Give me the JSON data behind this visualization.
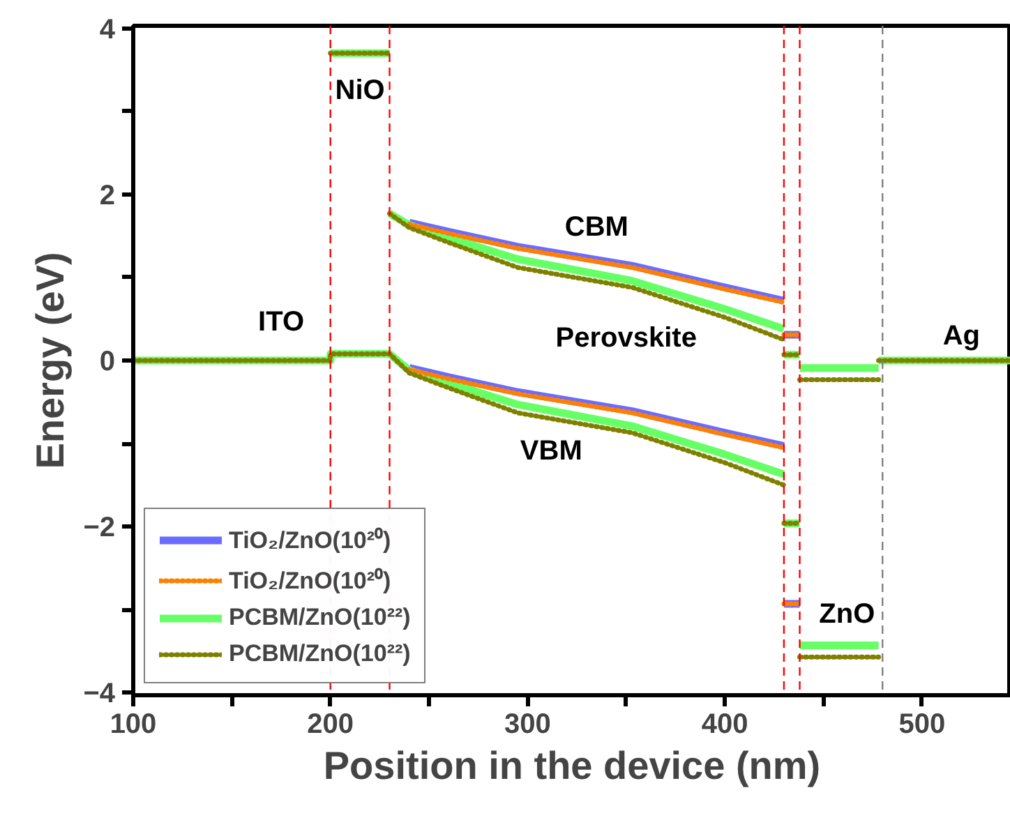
{
  "chart_data": {
    "type": "line",
    "xlabel": "Position in the device (nm)",
    "ylabel": "Energy (eV)",
    "series": [
      {
        "name": "TiO₂/ZnO(10²⁰)",
        "color": "#6b6bff",
        "line_style": "solid",
        "x": [
          240,
          260,
          295,
          353,
          400,
          430
        ],
        "values": [
          -0.09,
          -0.2,
          -0.38,
          -0.61,
          -0.87,
          -1.03
        ]
      },
      {
        "color": "#6b6bff",
        "line_style": "solid",
        "x": [
          240,
          260,
          295,
          353,
          400,
          430
        ],
        "values": [
          1.66,
          1.55,
          1.37,
          1.14,
          0.88,
          0.72
        ]
      },
      {
        "color": "#6b6bff",
        "line_style": "solid",
        "x": [
          430,
          438
        ],
        "values": [
          0.31,
          0.31
        ]
      },
      {
        "color": "#6b6bff",
        "line_style": "solid",
        "x": [
          430,
          438
        ],
        "values": [
          -2.93,
          -2.93
        ]
      },
      {
        "name": "TiO₂/ZnO(10²⁰)",
        "color": "#ff8000",
        "line_style": "dotted",
        "x": [
          240,
          260,
          295,
          353,
          400,
          430
        ],
        "values": [
          -0.11,
          -0.22,
          -0.4,
          -0.63,
          -0.89,
          -1.05
        ]
      },
      {
        "color": "#ff8000",
        "line_style": "dotted",
        "x": [
          240,
          260,
          295,
          353,
          400,
          430
        ],
        "values": [
          1.64,
          1.53,
          1.35,
          1.12,
          0.86,
          0.7
        ]
      },
      {
        "color": "#ff8000",
        "line_style": "dotted",
        "x": [
          430,
          438
        ],
        "values": [
          0.31,
          0.31
        ]
      },
      {
        "color": "#ff8000",
        "line_style": "dotted",
        "x": [
          430,
          438
        ],
        "values": [
          -2.93,
          -2.93
        ]
      },
      {
        "name": "PCBM/ZnO(10²²)",
        "color": "#66ff66",
        "line_style": "solid",
        "x": [
          100,
          200,
          200,
          230,
          240,
          260,
          295,
          353,
          400,
          430
        ],
        "values": [
          0,
          0,
          0.08,
          0.08,
          -0.12,
          -0.27,
          -0.53,
          -0.79,
          -1.13,
          -1.37
        ]
      },
      {
        "color": "#66ff66",
        "line_style": "solid",
        "x": [
          200,
          230
        ],
        "values": [
          3.7,
          3.7
        ]
      },
      {
        "color": "#66ff66",
        "line_style": "solid",
        "x": [
          230,
          240,
          260,
          295,
          353,
          400,
          430
        ],
        "values": [
          1.77,
          1.63,
          1.48,
          1.22,
          0.96,
          0.62,
          0.38
        ]
      },
      {
        "color": "#66ff66",
        "line_style": "solid",
        "x": [
          430,
          438
        ],
        "values": [
          0.07,
          0.07
        ]
      },
      {
        "color": "#66ff66",
        "line_style": "solid",
        "x": [
          430,
          438
        ],
        "values": [
          -1.96,
          -1.96
        ]
      },
      {
        "color": "#66ff66",
        "line_style": "solid",
        "x": [
          438,
          478
        ],
        "values": [
          -0.09,
          -0.09
        ]
      },
      {
        "color": "#66ff66",
        "line_style": "solid",
        "x": [
          438,
          478
        ],
        "values": [
          -3.43,
          -3.43
        ]
      },
      {
        "color": "#66ff66",
        "line_style": "solid",
        "x": [
          478,
          545
        ],
        "values": [
          0,
          0
        ]
      },
      {
        "name": "PCBM/ZnO(10²²)",
        "color": "#808000",
        "line_style": "dotted",
        "x": [
          100,
          200,
          200,
          230,
          240,
          260,
          295,
          353,
          400,
          430
        ],
        "values": [
          0,
          0,
          0.08,
          0.08,
          -0.15,
          -0.33,
          -0.63,
          -0.87,
          -1.23,
          -1.5
        ]
      },
      {
        "color": "#808000",
        "line_style": "dotted",
        "x": [
          200,
          230
        ],
        "values": [
          3.7,
          3.7
        ]
      },
      {
        "color": "#808000",
        "line_style": "dotted",
        "x": [
          230,
          240,
          260,
          295,
          353,
          400,
          430
        ],
        "values": [
          1.77,
          1.6,
          1.42,
          1.12,
          0.88,
          0.52,
          0.25
        ]
      },
      {
        "color": "#808000",
        "line_style": "dotted",
        "x": [
          430,
          438
        ],
        "values": [
          0.07,
          0.07
        ]
      },
      {
        "color": "#808000",
        "line_style": "dotted",
        "x": [
          430,
          438
        ],
        "values": [
          -1.96,
          -1.96
        ]
      },
      {
        "color": "#808000",
        "line_style": "dotted",
        "x": [
          438,
          478
        ],
        "values": [
          -0.23,
          -0.23
        ]
      },
      {
        "color": "#808000",
        "line_style": "dotted",
        "x": [
          438,
          478
        ],
        "values": [
          -3.57,
          -3.57
        ]
      },
      {
        "color": "#808000",
        "line_style": "dotted",
        "x": [
          478,
          545
        ],
        "values": [
          0,
          0
        ]
      }
    ],
    "xlim": [
      100,
      545
    ],
    "xticks": [
      100,
      {
        "value": 150,
        "label": null
      },
      200,
      {
        "value": 250,
        "label": null
      },
      300,
      {
        "value": 350,
        "label": null
      },
      400,
      {
        "value": 450,
        "label": null
      },
      500
    ],
    "ylim": [
      -4.03,
      4.03
    ],
    "yticks": [
      -4,
      {
        "value": -3,
        "label": null
      },
      -2,
      {
        "value": -1,
        "label": null
      },
      0,
      {
        "value": 1,
        "label": null
      },
      2,
      {
        "value": 3,
        "label": null
      },
      4
    ],
    "ref_lines": [
      {
        "axis": "x",
        "value": 200,
        "label": null,
        "color": "#ff0000",
        "line_style": "dashed"
      },
      {
        "axis": "x",
        "value": 230,
        "label": null,
        "color": "#ff0000",
        "line_style": "dashed"
      },
      {
        "axis": "x",
        "value": 430,
        "label": null,
        "color": "#ff0000",
        "line_style": "dashed"
      },
      {
        "axis": "x",
        "value": 438,
        "label": null,
        "color": "#ff0000",
        "line_style": "dashed"
      },
      {
        "axis": "x",
        "value": 480,
        "label": null,
        "color": "#808080",
        "line_style": "dashed"
      }
    ],
    "annotations": [
      "ITO",
      "NiO",
      "CBM",
      "Perovskite",
      "VBM",
      "ZnO",
      "Ag"
    ],
    "grid": false,
    "legend": "bottom left"
  }
}
